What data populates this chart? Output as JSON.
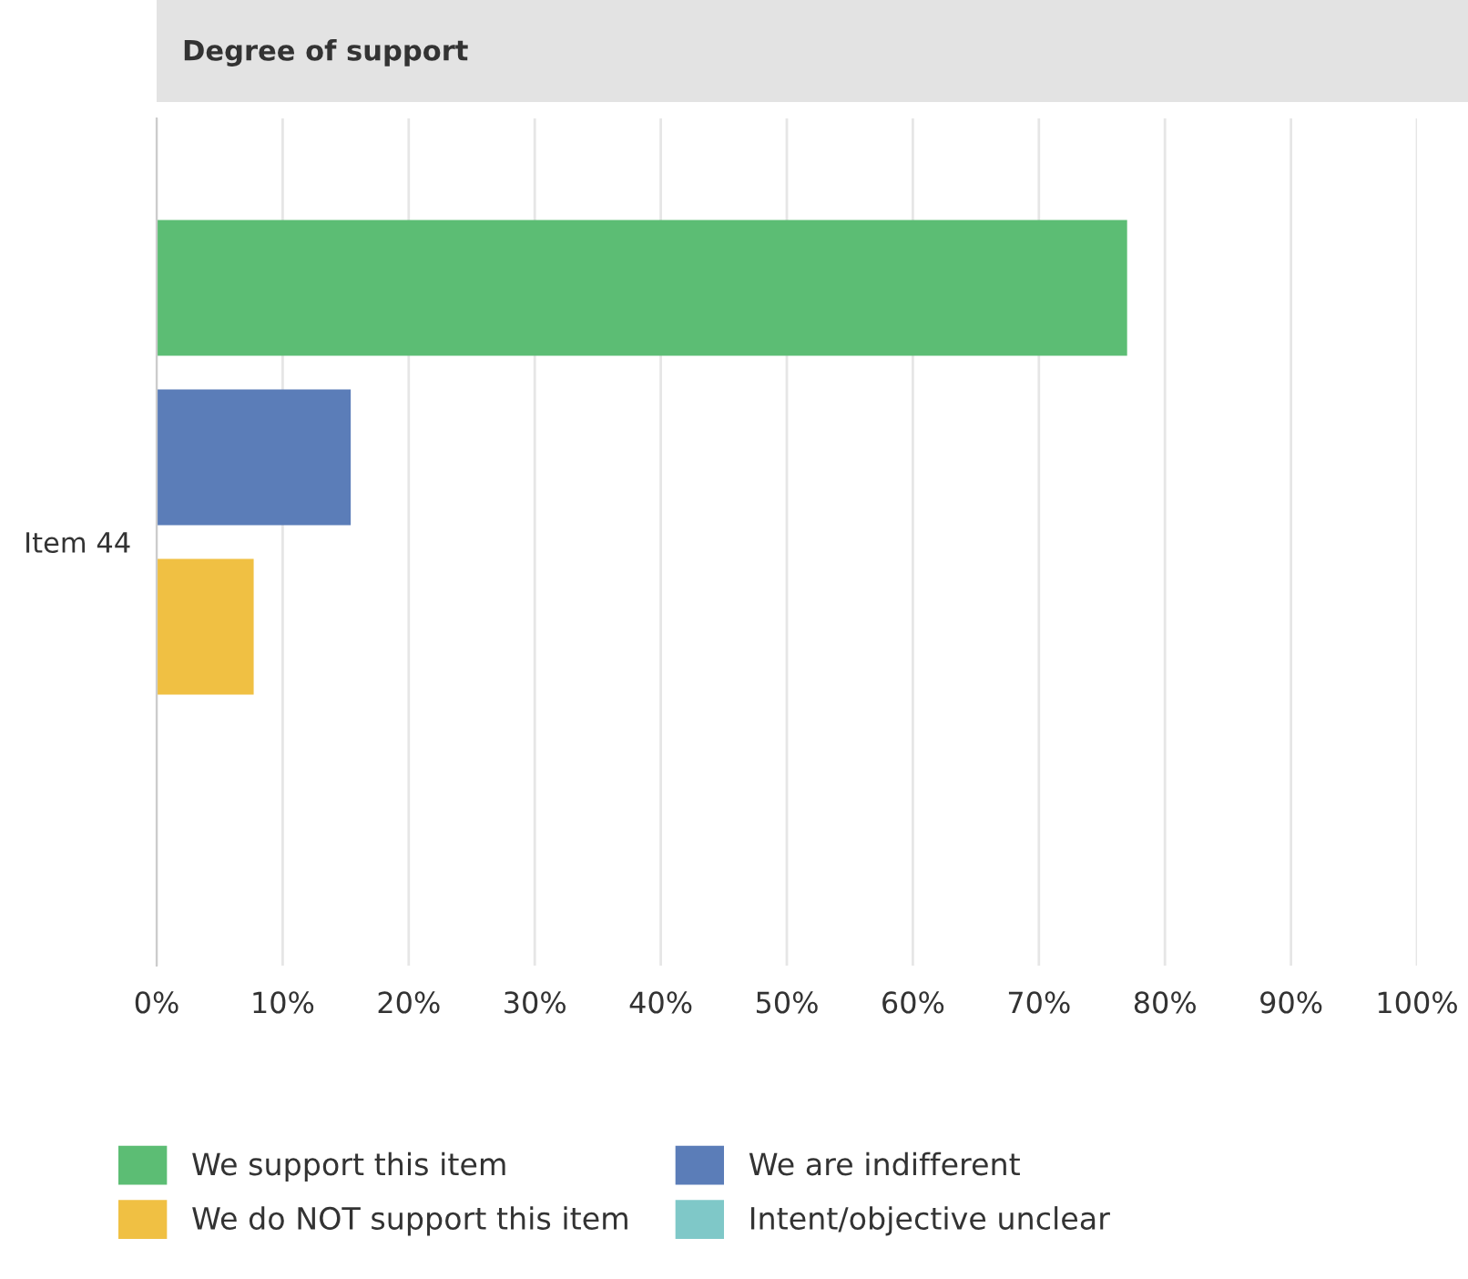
{
  "chart_data": {
    "type": "bar",
    "orientation": "horizontal",
    "title": "Degree of support",
    "categories": [
      "Item 44"
    ],
    "series": [
      {
        "name": "We support this item",
        "color": "#5cbd74",
        "values": [
          77
        ]
      },
      {
        "name": "We are indifferent",
        "color": "#5b7db8",
        "values": [
          15.4
        ]
      },
      {
        "name": "We do NOT support this item",
        "color": "#f0c043",
        "values": [
          7.7
        ]
      },
      {
        "name": "Intent/objective unclear",
        "color": "#7fc8c8",
        "values": [
          0
        ]
      }
    ],
    "xlim": [
      0,
      100
    ],
    "xticks": [
      {
        "value": 0,
        "label": "0%"
      },
      {
        "value": 10,
        "label": "10%"
      },
      {
        "value": 20,
        "label": "20%"
      },
      {
        "value": 30,
        "label": "30%"
      },
      {
        "value": 40,
        "label": "40%"
      },
      {
        "value": 50,
        "label": "50%"
      },
      {
        "value": 60,
        "label": "60%"
      },
      {
        "value": 70,
        "label": "70%"
      },
      {
        "value": 80,
        "label": "80%"
      },
      {
        "value": 90,
        "label": "90%"
      },
      {
        "value": 100,
        "label": "100%"
      }
    ],
    "grid": "x",
    "legend": "bottom"
  }
}
